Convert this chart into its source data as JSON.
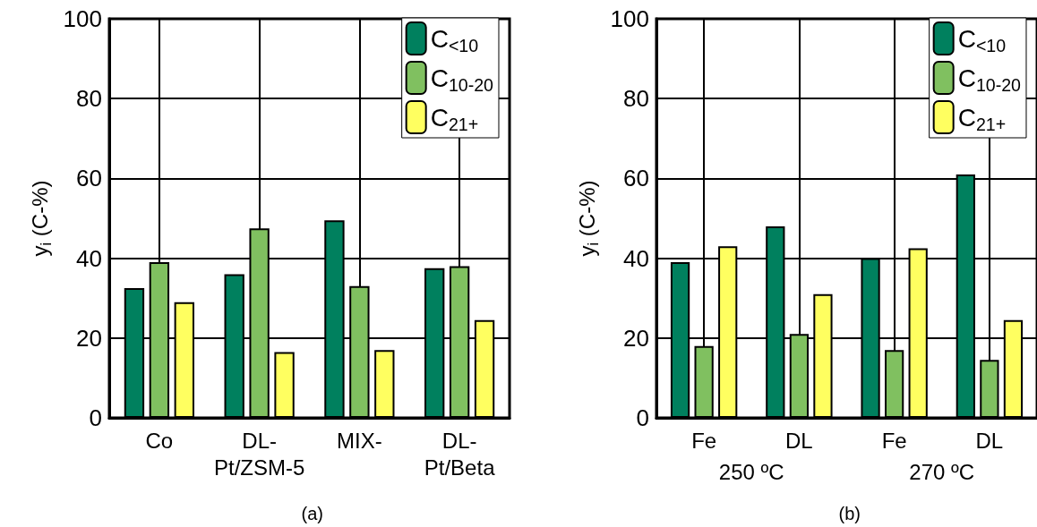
{
  "chart_data": [
    {
      "type": "bar",
      "title": "(a)",
      "ylabel": "y$_{i}$ (C-%)",
      "categories": [
        "Co",
        "DL-Pt/ZSM-5",
        "MIX-",
        "DL-Pt/Beta"
      ],
      "ylim": [
        0,
        100
      ],
      "yticks": [
        0,
        20,
        40,
        60,
        80,
        100
      ],
      "grid": true,
      "legend": "top right",
      "series": [
        {
          "name": "C$_{<10}$",
          "color": "#00805e",
          "values": [
            32.5,
            36,
            49.5,
            37.5
          ]
        },
        {
          "name": "C$_{10-20}$",
          "color": "#80c060",
          "values": [
            39,
            47.5,
            33,
            38
          ]
        },
        {
          "name": "C$_{21+}$",
          "color": "#ffff60",
          "values": [
            29,
            16.5,
            17,
            24.5
          ]
        }
      ]
    },
    {
      "type": "bar",
      "title": "(b)",
      "ylabel": "y$_{i}$ (C-%)",
      "categories": [
        "Fe",
        "DL",
        "Fe",
        "DL"
      ],
      "annotations": [
        "250 ºC",
        "270 ºC"
      ],
      "ylim": [
        0,
        100
      ],
      "yticks": [
        0,
        20,
        40,
        60,
        80,
        100
      ],
      "grid": true,
      "legend": "top right",
      "series": [
        {
          "name": "C$_{<10}$",
          "color": "#00805e",
          "values": [
            39,
            48,
            40,
            61
          ]
        },
        {
          "name": "C$_{10-20}$",
          "color": "#80c060",
          "values": [
            18,
            21,
            17,
            14.5
          ]
        },
        {
          "name": "C$_{21+}$",
          "color": "#ffff60",
          "values": [
            43,
            31,
            42.5,
            24.5
          ]
        }
      ]
    }
  ]
}
